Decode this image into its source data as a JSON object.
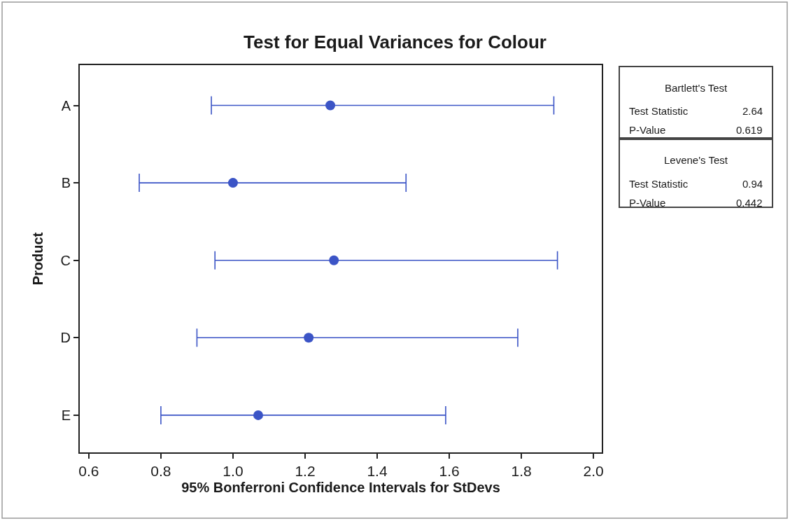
{
  "chart_data": {
    "type": "scatter",
    "orientation": "horizontal",
    "title": "Test for Equal Variances for Colour",
    "xlabel": "95% Bonferroni Confidence Intervals for StDevs",
    "ylabel": "Product",
    "categories": [
      "A",
      "B",
      "C",
      "D",
      "E"
    ],
    "values": [
      1.27,
      1.0,
      1.28,
      1.21,
      1.07
    ],
    "errors": [
      [
        0.94,
        1.89
      ],
      [
        0.74,
        1.48
      ],
      [
        0.95,
        1.9
      ],
      [
        0.9,
        1.79
      ],
      [
        0.8,
        1.59
      ]
    ],
    "color": "#3b54c6",
    "marker": "circle",
    "xlim": [
      0.575,
      2.023
    ],
    "xticks": [
      0.6,
      0.8,
      {
        "value": 1.0,
        "label": "1.0"
      },
      1.2,
      1.4,
      1.6,
      1.8,
      {
        "value": 2.0,
        "label": "2.0"
      }
    ],
    "annotations": [
      "Bartlett's Test",
      "Test Statistic",
      "2.64",
      "P-Value",
      "0.619",
      "Levene's Test",
      "Test Statistic",
      "0.94",
      "P-Value",
      "0.442"
    ]
  }
}
